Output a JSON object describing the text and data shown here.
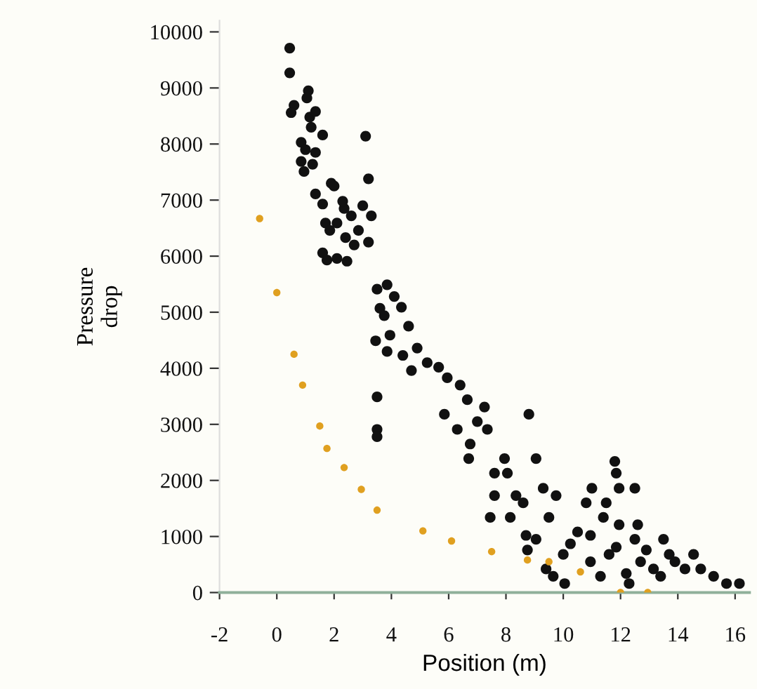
{
  "chart_data": {
    "type": "scatter",
    "xlabel": "Position (m)",
    "ylabel": "Pressure\ndrop",
    "xlim": [
      -2,
      16.5
    ],
    "xticks": [
      -2,
      0,
      2,
      4,
      6,
      8,
      10,
      12,
      14,
      16
    ],
    "ylim": [
      0,
      10200
    ],
    "yticks": [
      0,
      1000,
      2000,
      3000,
      4000,
      5000,
      6000,
      7000,
      8000,
      9000,
      10000
    ],
    "marker": "circle",
    "grid": false,
    "series": [
      {
        "color": "#111111",
        "x": [
          0.45,
          0.45,
          0.6,
          0.5,
          1.1,
          1.05,
          1.15,
          1.35,
          0.85,
          1.0,
          1.2,
          1.35,
          0.85,
          0.95,
          1.25,
          1.6,
          1.35,
          1.6,
          1.9,
          2.0,
          1.7,
          1.85,
          2.1,
          2.35,
          2.3,
          2.6,
          3.0,
          2.85,
          3.1,
          3.2,
          1.6,
          1.75,
          2.1,
          2.4,
          2.7,
          3.3,
          2.45,
          3.2,
          3.5,
          3.85,
          4.1,
          3.6,
          3.75,
          4.35,
          3.45,
          3.95,
          4.6,
          4.4,
          4.7,
          4.9,
          3.85,
          3.5,
          3.5,
          3.5,
          5.65,
          5.25,
          5.95,
          5.85,
          6.4,
          6.3,
          6.65,
          6.75,
          7.0,
          6.7,
          7.25,
          7.35,
          7.6,
          7.95,
          7.6,
          7.45,
          8.05,
          8.35,
          8.6,
          8.7,
          8.75,
          8.8,
          8.15,
          9.05,
          9.3,
          9.75,
          9.05,
          9.5,
          9.4,
          10.0,
          10.25,
          9.65,
          10.05,
          10.5,
          11.0,
          10.8,
          10.95,
          11.4,
          11.5,
          10.95,
          11.6,
          11.85,
          11.3,
          12.2,
          11.95,
          12.5,
          12.6,
          12.7,
          12.9,
          13.15,
          13.5,
          13.4,
          13.9,
          14.25,
          14.8,
          15.25,
          15.7,
          16.15,
          13.7,
          14.55,
          12.3,
          11.8,
          11.85,
          11.95,
          12.5
        ],
        "values": [
          9710,
          9270,
          8690,
          8560,
          8950,
          8820,
          8480,
          8580,
          8030,
          7900,
          8300,
          7850,
          7690,
          7510,
          7640,
          8160,
          7110,
          6930,
          7300,
          7250,
          6590,
          6460,
          6590,
          6850,
          6980,
          6720,
          6900,
          6460,
          8140,
          7380,
          6060,
          5930,
          5960,
          6330,
          6200,
          6720,
          5910,
          6250,
          5410,
          5490,
          5280,
          5070,
          4940,
          5090,
          4490,
          4590,
          4750,
          4230,
          3960,
          4360,
          4300,
          3490,
          2910,
          2780,
          4020,
          4100,
          3830,
          3180,
          3700,
          2910,
          3440,
          2650,
          3050,
          2390,
          3310,
          2910,
          2130,
          2390,
          1730,
          1340,
          2130,
          1730,
          1600,
          1020,
          760,
          3180,
          1340,
          2390,
          1860,
          1730,
          950,
          1340,
          420,
          680,
          870,
          290,
          160,
          1080,
          1860,
          1600,
          1020,
          1340,
          1600,
          550,
          680,
          810,
          290,
          340,
          1210,
          950,
          1210,
          550,
          760,
          420,
          950,
          290,
          550,
          420,
          420,
          290,
          160,
          160,
          680,
          680,
          160,
          2340,
          2130,
          1860,
          1860
        ]
      },
      {
        "color": "#e0a020",
        "x": [
          -0.6,
          0,
          0.6,
          0.9,
          1.5,
          1.75,
          2.35,
          2.95,
          3.5,
          5.1,
          6.1,
          7.5,
          8.75,
          9.5,
          10.6,
          12,
          12.95
        ],
        "values": [
          6670,
          5350,
          4250,
          3700,
          2970,
          2570,
          2230,
          1840,
          1470,
          1100,
          920,
          730,
          580,
          550,
          370,
          0,
          0
        ]
      }
    ]
  }
}
